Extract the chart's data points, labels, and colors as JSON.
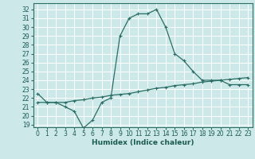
{
  "xlabel": "Humidex (Indice chaleur)",
  "background_color": "#cce8e8",
  "grid_color": "#ffffff",
  "line_color": "#2a6e65",
  "xlim": [
    -0.5,
    23.5
  ],
  "ylim": [
    18.7,
    32.7
  ],
  "yticks": [
    19,
    20,
    21,
    22,
    23,
    24,
    25,
    26,
    27,
    28,
    29,
    30,
    31,
    32
  ],
  "xticks": [
    0,
    1,
    2,
    3,
    4,
    5,
    6,
    7,
    8,
    9,
    10,
    11,
    12,
    13,
    14,
    15,
    16,
    17,
    18,
    19,
    20,
    21,
    22,
    23
  ],
  "curve1_x": [
    0,
    1,
    2,
    3,
    4,
    5,
    6,
    7,
    8,
    9,
    10,
    11,
    12,
    13,
    14,
    15,
    16,
    17,
    18,
    19,
    20,
    21,
    22,
    23
  ],
  "curve1_y": [
    22.5,
    21.5,
    21.5,
    21.0,
    20.5,
    18.6,
    19.5,
    21.5,
    22.0,
    29.0,
    31.0,
    31.5,
    31.5,
    32.0,
    30.0,
    27.0,
    26.2,
    25.0,
    24.0,
    24.0,
    24.0,
    23.5,
    23.5,
    23.5
  ],
  "curve2_x": [
    0,
    1,
    2,
    3,
    4,
    5,
    6,
    7,
    8,
    9,
    10,
    11,
    12,
    13,
    14,
    15,
    16,
    17,
    18,
    19,
    20,
    21,
    22,
    23
  ],
  "curve2_y": [
    21.5,
    21.5,
    21.5,
    21.5,
    21.7,
    21.8,
    22.0,
    22.1,
    22.3,
    22.4,
    22.5,
    22.7,
    22.9,
    23.1,
    23.2,
    23.4,
    23.5,
    23.6,
    23.8,
    23.9,
    24.0,
    24.1,
    24.2,
    24.3
  ],
  "tick_fontsize": 5.5,
  "xlabel_fontsize": 6.5
}
